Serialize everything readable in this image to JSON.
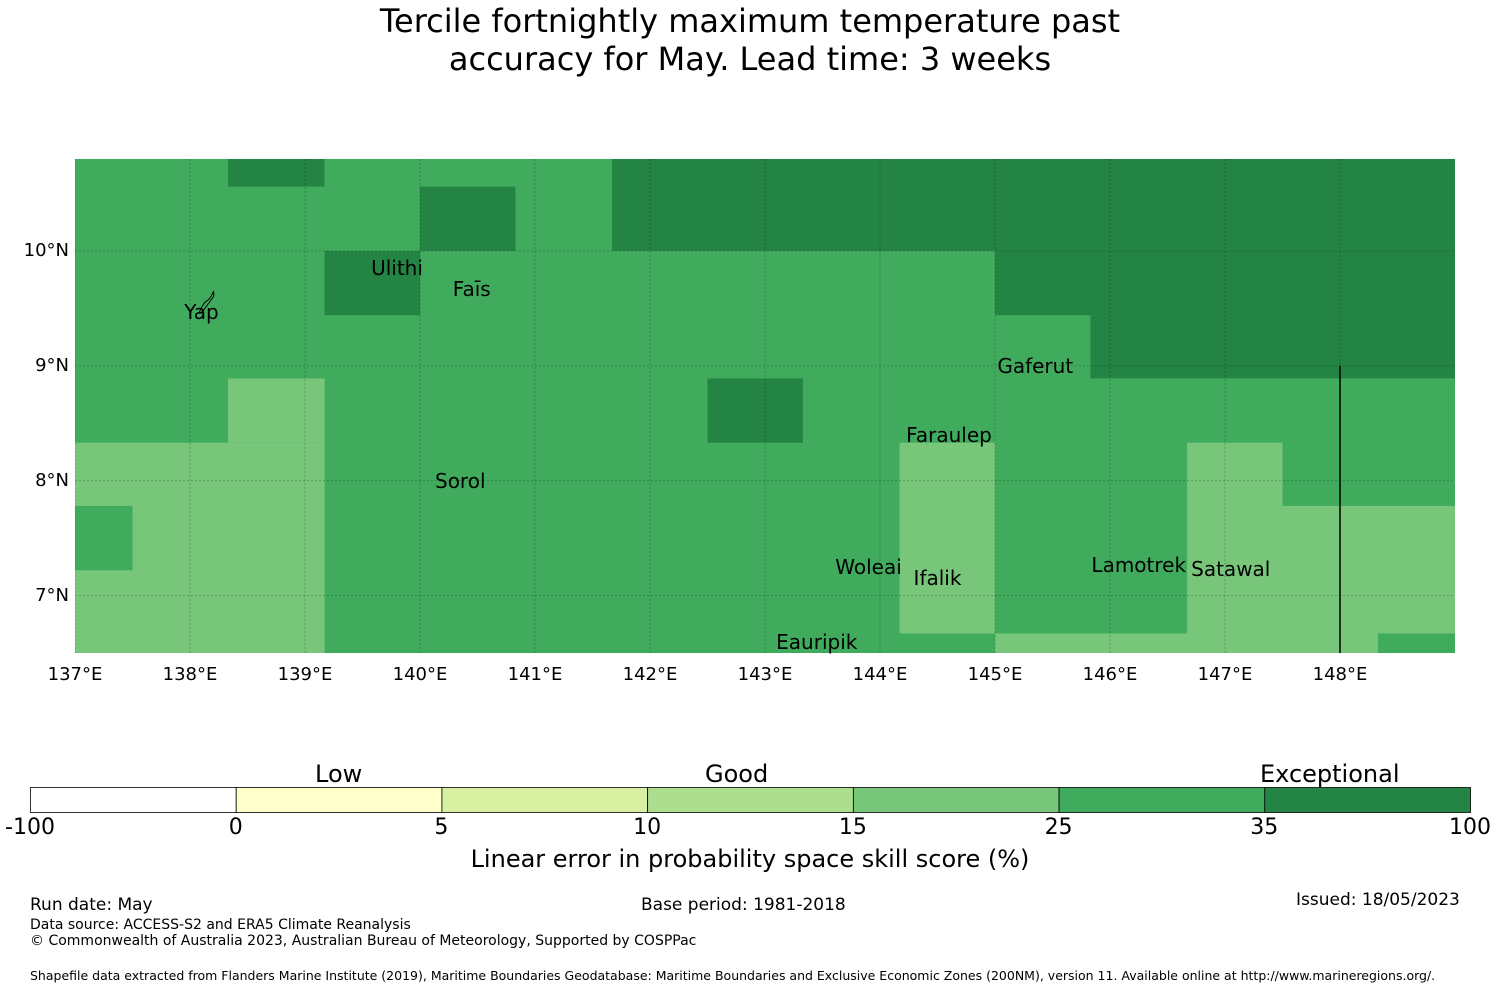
{
  "title": {
    "line1": "Tercile fortnightly maximum temperature past",
    "line2": "accuracy for May. Lead time: 3 weeks"
  },
  "map": {
    "lon_min": 137.0,
    "lon_max": 149.0,
    "lat_min": 6.5,
    "lat_max": 10.8,
    "lon_ticks": [
      {
        "value": 137,
        "label": "137°E"
      },
      {
        "value": 138,
        "label": "138°E"
      },
      {
        "value": 139,
        "label": "139°E"
      },
      {
        "value": 140,
        "label": "140°E"
      },
      {
        "value": 141,
        "label": "141°E"
      },
      {
        "value": 142,
        "label": "142°E"
      },
      {
        "value": 143,
        "label": "143°E"
      },
      {
        "value": 144,
        "label": "144°E"
      },
      {
        "value": 145,
        "label": "145°E"
      },
      {
        "value": 146,
        "label": "146°E"
      },
      {
        "value": 147,
        "label": "147°E"
      },
      {
        "value": 148,
        "label": "148°E"
      }
    ],
    "lat_ticks": [
      {
        "value": 10,
        "label": "10°N"
      },
      {
        "value": 9,
        "label": "9°N"
      },
      {
        "value": 8,
        "label": "8°N"
      },
      {
        "value": 7,
        "label": "7°N"
      }
    ],
    "cells": [
      {
        "lon0": 138.33,
        "lon1": 139.17,
        "lat0": 10.56,
        "lat1": 10.8,
        "cls": 6
      },
      {
        "lon0": 139.17,
        "lon1": 140.0,
        "lat0": 9.44,
        "lat1": 10.0,
        "cls": 6
      },
      {
        "lon0": 140.0,
        "lon1": 140.83,
        "lat0": 10.0,
        "lat1": 10.56,
        "cls": 6
      },
      {
        "lon0": 141.67,
        "lon1": 149.0,
        "lat0": 10.0,
        "lat1": 10.8,
        "cls": 6
      },
      {
        "lon0": 145.0,
        "lon1": 149.0,
        "lat0": 9.44,
        "lat1": 10.0,
        "cls": 6
      },
      {
        "lon0": 145.83,
        "lon1": 149.0,
        "lat0": 8.89,
        "lat1": 9.44,
        "cls": 6
      },
      {
        "lon0": 142.5,
        "lon1": 143.33,
        "lat0": 8.33,
        "lat1": 8.89,
        "cls": 6
      },
      {
        "lon0": 137.0,
        "lon1": 139.17,
        "lat0": 6.5,
        "lat1": 8.33,
        "cls": 4
      },
      {
        "lon0": 138.33,
        "lon1": 139.17,
        "lat0": 8.33,
        "lat1": 8.89,
        "cls": 4
      },
      {
        "lon0": 137.0,
        "lon1": 137.5,
        "lat0": 7.22,
        "lat1": 7.78,
        "cls": 5
      },
      {
        "lon0": 144.17,
        "lon1": 145.0,
        "lat0": 6.67,
        "lat1": 8.33,
        "cls": 4
      },
      {
        "lon0": 145.0,
        "lon1": 146.67,
        "lat0": 6.5,
        "lat1": 6.67,
        "cls": 4
      },
      {
        "lon0": 146.67,
        "lon1": 147.5,
        "lat0": 6.5,
        "lat1": 8.33,
        "cls": 4
      },
      {
        "lon0": 147.5,
        "lon1": 149.0,
        "lat0": 6.5,
        "lat1": 7.78,
        "cls": 4
      },
      {
        "lon0": 148.33,
        "lon1": 149.0,
        "lat0": 6.5,
        "lat1": 6.67,
        "cls": 5
      }
    ],
    "boundary_line": {
      "lon": 148.0,
      "lat0": 6.5,
      "lat1": 9.0
    },
    "places": [
      {
        "name": "Ulithi",
        "lon": 139.8,
        "lat": 9.85
      },
      {
        "name": "Yap",
        "lon": 138.1,
        "lat": 9.47
      },
      {
        "name": "Faīs",
        "lon": 140.45,
        "lat": 9.67
      },
      {
        "name": "Gaferut",
        "lon": 145.35,
        "lat": 9.0
      },
      {
        "name": "Faraulep",
        "lon": 144.6,
        "lat": 8.4
      },
      {
        "name": "Sorol",
        "lon": 140.35,
        "lat": 8.0
      },
      {
        "name": "Woleai",
        "lon": 143.9,
        "lat": 7.25
      },
      {
        "name": "Ifalik",
        "lon": 144.5,
        "lat": 7.15
      },
      {
        "name": "Lamotrek",
        "lon": 146.25,
        "lat": 7.27
      },
      {
        "name": "Satawal",
        "lon": 147.05,
        "lat": 7.23
      },
      {
        "name": "Eauripik",
        "lon": 143.45,
        "lat": 6.6
      }
    ]
  },
  "legend": {
    "bins": [
      {
        "from": "-100",
        "to": "0",
        "color": "#ffffff"
      },
      {
        "from": "0",
        "to": "5",
        "color": "#ffffcc"
      },
      {
        "from": "5",
        "to": "10",
        "color": "#d9f0a3"
      },
      {
        "from": "10",
        "to": "15",
        "color": "#addd8e"
      },
      {
        "from": "15",
        "to": "25",
        "color": "#78c679"
      },
      {
        "from": "25",
        "to": "35",
        "color": "#41ab5d"
      },
      {
        "from": "35",
        "to": "100",
        "color": "#238443"
      }
    ],
    "ticks": [
      "-100",
      "0",
      "5",
      "10",
      "15",
      "25",
      "35",
      "100"
    ],
    "categories": {
      "low": "Low",
      "good": "Good",
      "exceptional": "Exceptional"
    },
    "label": "Linear error in probability space skill score (%)"
  },
  "footer": {
    "run_date": "Run date: May",
    "base_period": "Base period: 1981-2018",
    "issued": "Issued: 18/05/2023",
    "data_source": "Data source: ACCESS-S2 and ERA5 Climate Reanalysis",
    "copyright": "© Commonwealth of Australia 2023, Australian Bureau of Meteorology, Supported by COSPPac",
    "shapefile": "Shapefile data extracted from Flanders Marine Institute (2019), Maritime Boundaries Geodatabase: Maritime Boundaries and Exclusive Economic Zones (200NM), version 11. Available online at http://www.marineregions.org/."
  }
}
